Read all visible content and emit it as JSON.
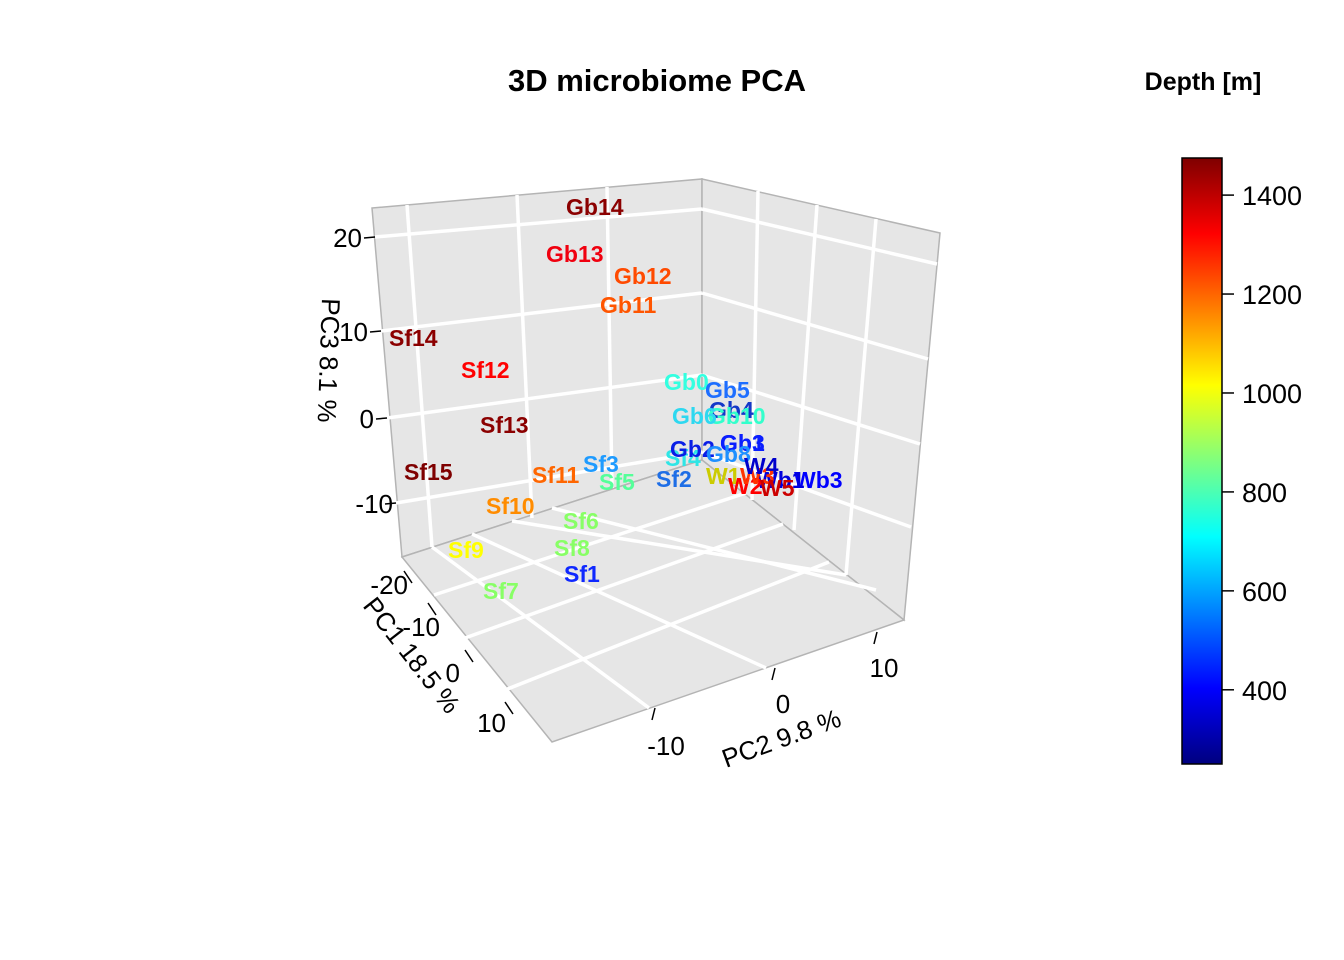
{
  "chart_data": {
    "type": "scatter",
    "title": "3D microbiome PCA",
    "xlabel": "PC1 18.5 %",
    "ylabel": "PC2 9.8 %",
    "zlabel": "PC3 8.1 %",
    "xlim": [
      -20,
      15
    ],
    "ylim": [
      -15,
      15
    ],
    "zlim": [
      -15,
      22
    ],
    "x_ticks": [
      "-20",
      "-10",
      "0",
      "10"
    ],
    "y_ticks": [
      "-10",
      "0",
      "10"
    ],
    "z_ticks": [
      "-10",
      "0",
      "10",
      "20"
    ],
    "colorbar": {
      "title": "Depth [m]",
      "range": [
        250,
        1475
      ],
      "ticks": [
        400,
        600,
        800,
        1000,
        1200,
        1400
      ],
      "palette": [
        "#00007F",
        "#0000FF",
        "#007FFF",
        "#00FFFF",
        "#7FFF7F",
        "#FFFF00",
        "#FF7F00",
        "#FF0000",
        "#7F0000"
      ]
    },
    "grid": true,
    "points": [
      {
        "label": "Gb14",
        "depth": 1470,
        "color": "#8B0000"
      },
      {
        "label": "Gb13",
        "depth": 1380,
        "color": "#F0000F"
      },
      {
        "label": "Gb12",
        "depth": 1280,
        "color": "#FF4A00"
      },
      {
        "label": "Gb11",
        "depth": 1250,
        "color": "#FF5500"
      },
      {
        "label": "Sf14",
        "depth": 1460,
        "color": "#8B0000"
      },
      {
        "label": "Sf12",
        "depth": 1390,
        "color": "#FF0000"
      },
      {
        "label": "Sf13",
        "depth": 1460,
        "color": "#8B0000"
      },
      {
        "label": "Sf15",
        "depth": 1470,
        "color": "#7F0000"
      },
      {
        "label": "Sf11",
        "depth": 1240,
        "color": "#FF6600"
      },
      {
        "label": "Sf10",
        "depth": 1160,
        "color": "#FF8C00"
      },
      {
        "label": "Sf9",
        "depth": 1010,
        "color": "#FFFF00"
      },
      {
        "label": "Sf7",
        "depth": 900,
        "color": "#88FF66"
      },
      {
        "label": "Sf8",
        "depth": 890,
        "color": "#88FF66"
      },
      {
        "label": "Sf6",
        "depth": 890,
        "color": "#88FF66"
      },
      {
        "label": "Sf5",
        "depth": 820,
        "color": "#55FF99"
      },
      {
        "label": "Sf3",
        "depth": 620,
        "color": "#1E9BFF"
      },
      {
        "label": "Sf1",
        "depth": 420,
        "color": "#0F28FF"
      },
      {
        "label": "Sf2",
        "depth": 600,
        "color": "#1E6EE6"
      },
      {
        "label": "Sf4",
        "depth": 700,
        "color": "#2EE6E6"
      },
      {
        "label": "Gb0",
        "depth": 720,
        "color": "#33FFE0"
      },
      {
        "label": "Gb5",
        "depth": 600,
        "color": "#1E6EFF"
      },
      {
        "label": "Gb4",
        "depth": 500,
        "color": "#1438C8"
      },
      {
        "label": "Gb10",
        "depth": 720,
        "color": "#33FFCC"
      },
      {
        "label": "Gb6",
        "depth": 680,
        "color": "#2ED8F0"
      },
      {
        "label": "Gb1",
        "depth": 420,
        "color": "#0A1EFF"
      },
      {
        "label": "Gb3",
        "depth": 420,
        "color": "#0A1EFF"
      },
      {
        "label": "Gb2",
        "depth": 450,
        "color": "#0A1EE6"
      },
      {
        "label": "Gb8",
        "depth": 600,
        "color": "#1E90FF"
      },
      {
        "label": "Wb3",
        "depth": 420,
        "color": "#0000FF"
      },
      {
        "label": "Wb1",
        "depth": 400,
        "color": "#0000DD"
      },
      {
        "label": "W1",
        "depth": 950,
        "color": "#CCCC00"
      },
      {
        "label": "W2",
        "depth": 1380,
        "color": "#FF0000"
      },
      {
        "label": "W3",
        "depth": 1300,
        "color": "#FF3300"
      },
      {
        "label": "W4",
        "depth": 420,
        "color": "#0000CC"
      },
      {
        "label": "W5",
        "depth": 1430,
        "color": "#CC0000"
      }
    ]
  }
}
